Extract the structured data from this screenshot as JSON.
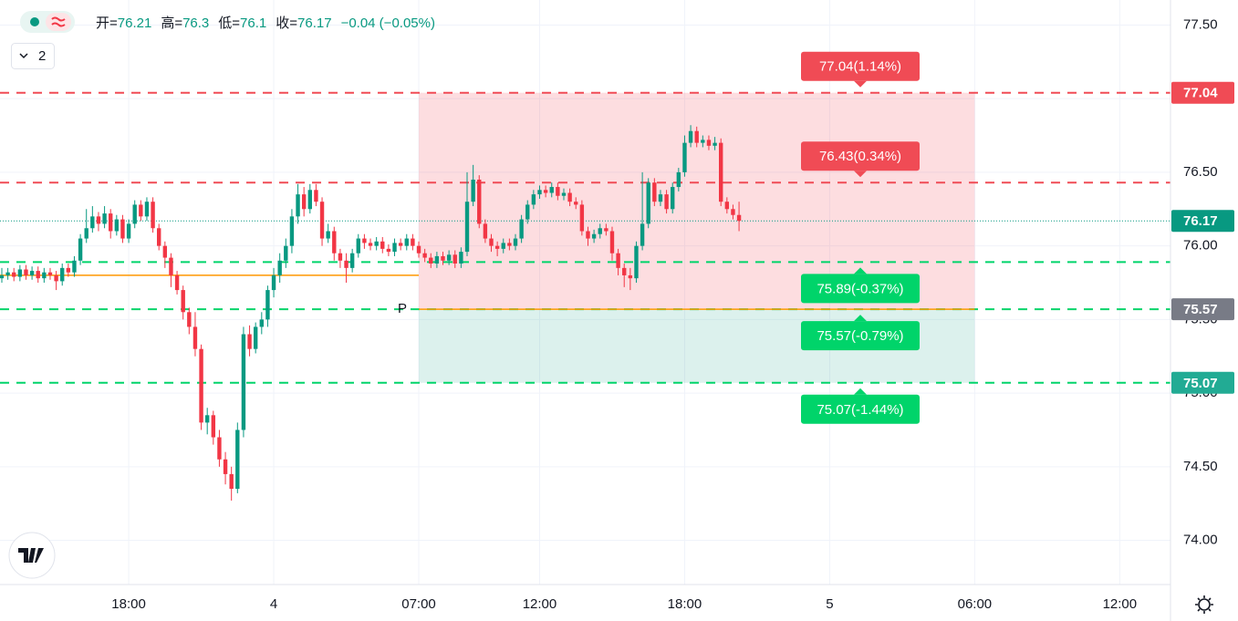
{
  "header": {
    "fields": [
      {
        "label": "开=",
        "value": 76.21
      },
      {
        "label": "高=",
        "value": 76.3
      },
      {
        "label": "低=",
        "value": 76.1
      },
      {
        "label": "收=",
        "value": 76.17
      }
    ],
    "change": "−0.04 (−0.05%)",
    "interval_count": "2"
  },
  "chart_data": {
    "type": "candlestick",
    "up_color": "#089981",
    "down_color": "#f23645",
    "xlim": [
      -21.3,
      172.4
    ],
    "xticks": [
      {
        "value": 0,
        "label": "18:00"
      },
      {
        "value": 24,
        "label": "4"
      },
      {
        "value": 48,
        "label": "07:00"
      },
      {
        "value": 68,
        "label": "12:00"
      },
      {
        "value": 92,
        "label": "18:00"
      },
      {
        "value": 116,
        "label": "5"
      },
      {
        "value": 140,
        "label": "06:00"
      },
      {
        "value": 164,
        "label": "12:00"
      }
    ],
    "ylim": [
      73.7,
      77.67
    ],
    "yticks": [
      {
        "value": 74,
        "label": "74.00"
      },
      {
        "value": 74.5,
        "label": "74.50"
      },
      {
        "value": 75,
        "label": "75.00"
      },
      {
        "value": 75.5,
        "label": "75.50"
      },
      {
        "value": 76,
        "label": "76.00"
      },
      {
        "value": 76.5,
        "label": "76.50"
      },
      {
        "value": 77,
        "label": "77.00"
      },
      {
        "value": 77.5,
        "label": "77.50"
      }
    ],
    "grid": true,
    "x": [
      -21,
      -20,
      -19,
      -18,
      -17,
      -16,
      -15,
      -14,
      -13,
      -12,
      -11,
      -10,
      -9,
      -8,
      -7,
      -6,
      -5,
      -4,
      -3,
      -2,
      -1,
      0,
      1,
      2,
      3,
      4,
      5,
      6,
      7,
      8,
      9,
      10,
      11,
      12,
      13,
      14,
      15,
      16,
      17,
      18,
      19,
      20,
      21,
      22,
      23,
      24,
      25,
      26,
      27,
      28,
      29,
      30,
      31,
      32,
      33,
      34,
      35,
      36,
      37,
      38,
      39,
      40,
      41,
      42,
      43,
      44,
      45,
      46,
      47,
      48,
      49,
      50,
      51,
      52,
      53,
      54,
      55,
      56,
      57,
      58,
      59,
      60,
      61,
      62,
      63,
      64,
      65,
      66,
      67,
      68,
      69,
      70,
      71,
      72,
      73,
      74,
      75,
      76,
      77,
      78,
      79,
      80,
      81,
      82,
      83,
      84,
      85,
      86,
      87,
      88,
      89,
      90,
      91,
      92,
      93,
      94,
      95,
      96,
      97,
      98,
      99,
      100,
      101
    ],
    "candles": [
      [
        75.78,
        75.85,
        75.75,
        75.8
      ],
      [
        75.8,
        75.85,
        75.77,
        75.82
      ],
      [
        75.82,
        75.85,
        75.76,
        75.79
      ],
      [
        75.79,
        75.87,
        75.76,
        75.84
      ],
      [
        75.84,
        75.87,
        75.77,
        75.8
      ],
      [
        75.8,
        75.86,
        75.77,
        75.83
      ],
      [
        75.83,
        75.86,
        75.75,
        75.78
      ],
      [
        75.78,
        75.85,
        75.75,
        75.82
      ],
      [
        75.82,
        75.85,
        75.77,
        75.8
      ],
      [
        75.8,
        75.83,
        75.7,
        75.76
      ],
      [
        75.76,
        75.88,
        75.73,
        75.85
      ],
      [
        75.85,
        75.88,
        75.79,
        75.82
      ],
      [
        75.82,
        75.93,
        75.79,
        75.9
      ],
      [
        75.9,
        76.08,
        75.87,
        76.05
      ],
      [
        76.05,
        76.25,
        76.02,
        76.12
      ],
      [
        76.12,
        76.27,
        76.09,
        76.2
      ],
      [
        76.2,
        76.23,
        76.1,
        76.15
      ],
      [
        76.15,
        76.27,
        76.12,
        76.22
      ],
      [
        76.22,
        76.25,
        76.05,
        76.1
      ],
      [
        76.1,
        76.21,
        76.07,
        76.18
      ],
      [
        76.18,
        76.21,
        76.02,
        76.05
      ],
      [
        76.05,
        76.18,
        76.02,
        76.15
      ],
      [
        76.15,
        76.31,
        76.12,
        76.28
      ],
      [
        76.28,
        76.31,
        76.17,
        76.2
      ],
      [
        76.2,
        76.33,
        76.17,
        76.3
      ],
      [
        76.3,
        76.33,
        76.09,
        76.12
      ],
      [
        76.12,
        76.15,
        75.97,
        76.0
      ],
      [
        76.0,
        76.03,
        75.85,
        75.92
      ],
      [
        75.92,
        75.95,
        75.72,
        75.8
      ],
      [
        75.8,
        75.83,
        75.67,
        75.7
      ],
      [
        75.7,
        75.73,
        75.5,
        75.55
      ],
      [
        75.55,
        75.58,
        75.4,
        75.45
      ],
      [
        75.45,
        75.55,
        75.25,
        75.3
      ],
      [
        75.3,
        75.33,
        74.75,
        74.8
      ],
      [
        74.8,
        74.9,
        74.72,
        74.85
      ],
      [
        74.85,
        74.88,
        74.65,
        74.7
      ],
      [
        74.7,
        74.75,
        74.5,
        74.55
      ],
      [
        74.55,
        74.6,
        74.38,
        74.45
      ],
      [
        74.45,
        74.5,
        74.27,
        74.35
      ],
      [
        74.35,
        74.8,
        74.32,
        74.75
      ],
      [
        74.75,
        75.45,
        74.7,
        75.4
      ],
      [
        75.4,
        75.46,
        75.25,
        75.3
      ],
      [
        75.3,
        75.48,
        75.27,
        75.45
      ],
      [
        75.45,
        75.55,
        75.4,
        75.5
      ],
      [
        75.5,
        75.73,
        75.45,
        75.7
      ],
      [
        75.7,
        75.85,
        75.65,
        75.8
      ],
      [
        75.8,
        75.95,
        75.75,
        75.9
      ],
      [
        75.9,
        76.05,
        75.85,
        76.0
      ],
      [
        76.0,
        76.25,
        75.95,
        76.2
      ],
      [
        76.2,
        76.42,
        76.15,
        76.35
      ],
      [
        76.35,
        76.4,
        76.2,
        76.25
      ],
      [
        76.25,
        76.42,
        76.22,
        76.38
      ],
      [
        76.38,
        76.42,
        76.27,
        76.3
      ],
      [
        76.3,
        76.33,
        76.0,
        76.05
      ],
      [
        76.05,
        76.15,
        76.02,
        76.1
      ],
      [
        76.1,
        76.13,
        75.9,
        75.95
      ],
      [
        75.95,
        75.98,
        75.85,
        75.9
      ],
      [
        75.9,
        75.95,
        75.75,
        75.85
      ],
      [
        75.85,
        75.98,
        75.82,
        75.95
      ],
      [
        75.95,
        76.08,
        75.92,
        76.05
      ],
      [
        76.05,
        76.08,
        75.98,
        76.02
      ],
      [
        76.02,
        76.05,
        75.97,
        76.0
      ],
      [
        76.0,
        76.06,
        75.97,
        76.03
      ],
      [
        76.03,
        76.06,
        75.95,
        75.98
      ],
      [
        75.98,
        76.01,
        75.93,
        75.96
      ],
      [
        75.96,
        76.05,
        75.93,
        76.02
      ],
      [
        76.02,
        76.05,
        75.97,
        76.0
      ],
      [
        76.0,
        76.08,
        75.97,
        76.05
      ],
      [
        76.05,
        76.08,
        75.97,
        76.0
      ],
      [
        76.0,
        76.03,
        75.92,
        75.95
      ],
      [
        75.95,
        75.98,
        75.89,
        75.92
      ],
      [
        75.92,
        75.95,
        75.85,
        75.88
      ],
      [
        75.88,
        75.96,
        75.85,
        75.93
      ],
      [
        75.93,
        75.96,
        75.87,
        75.9
      ],
      [
        75.9,
        75.97,
        75.87,
        75.94
      ],
      [
        75.94,
        75.97,
        75.85,
        75.88
      ],
      [
        75.88,
        75.99,
        75.85,
        75.96
      ],
      [
        75.96,
        76.5,
        75.93,
        76.3
      ],
      [
        76.3,
        76.55,
        76.27,
        76.45
      ],
      [
        76.45,
        76.48,
        76.12,
        76.15
      ],
      [
        76.15,
        76.18,
        76.02,
        76.05
      ],
      [
        76.05,
        76.08,
        75.96,
        76.0
      ],
      [
        76.0,
        76.03,
        75.93,
        75.98
      ],
      [
        75.98,
        76.05,
        75.95,
        76.02
      ],
      [
        76.02,
        76.05,
        75.97,
        76.0
      ],
      [
        76.0,
        76.08,
        75.97,
        76.05
      ],
      [
        76.05,
        76.21,
        76.02,
        76.18
      ],
      [
        76.18,
        76.31,
        76.15,
        76.28
      ],
      [
        76.28,
        76.38,
        76.25,
        76.35
      ],
      [
        76.35,
        76.41,
        76.32,
        76.38
      ],
      [
        76.38,
        76.41,
        76.33,
        76.36
      ],
      [
        76.36,
        76.43,
        76.33,
        76.4
      ],
      [
        76.4,
        76.43,
        76.31,
        76.34
      ],
      [
        76.34,
        76.39,
        76.31,
        76.36
      ],
      [
        76.36,
        76.39,
        76.27,
        76.3
      ],
      [
        76.3,
        76.33,
        76.25,
        76.28
      ],
      [
        76.28,
        76.31,
        76.07,
        76.1
      ],
      [
        76.1,
        76.13,
        76.0,
        76.05
      ],
      [
        76.05,
        76.11,
        76.02,
        76.08
      ],
      [
        76.08,
        76.15,
        76.05,
        76.12
      ],
      [
        76.12,
        76.15,
        76.07,
        76.1
      ],
      [
        76.1,
        76.13,
        75.9,
        75.95
      ],
      [
        75.95,
        75.98,
        75.8,
        75.85
      ],
      [
        75.85,
        75.88,
        75.72,
        75.8
      ],
      [
        75.8,
        75.85,
        75.7,
        75.78
      ],
      [
        75.78,
        76.03,
        75.75,
        76.0
      ],
      [
        76.0,
        76.5,
        75.97,
        76.15
      ],
      [
        76.15,
        76.46,
        76.12,
        76.43
      ],
      [
        76.43,
        76.46,
        76.27,
        76.3
      ],
      [
        76.3,
        76.38,
        76.27,
        76.35
      ],
      [
        76.35,
        76.38,
        76.22,
        76.25
      ],
      [
        76.25,
        76.43,
        76.22,
        76.4
      ],
      [
        76.4,
        76.53,
        76.37,
        76.5
      ],
      [
        76.5,
        76.75,
        76.47,
        76.7
      ],
      [
        76.7,
        76.82,
        76.67,
        76.78
      ],
      [
        76.78,
        76.81,
        76.67,
        76.7
      ],
      [
        76.7,
        76.75,
        76.67,
        76.72
      ],
      [
        76.72,
        76.75,
        76.65,
        76.68
      ],
      [
        76.68,
        76.74,
        76.65,
        76.7
      ],
      [
        76.7,
        76.73,
        76.27,
        76.3
      ],
      [
        76.3,
        76.33,
        76.22,
        76.25
      ],
      [
        76.25,
        76.28,
        76.18,
        76.21
      ],
      [
        76.21,
        76.3,
        76.1,
        76.17
      ]
    ],
    "last_price": {
      "value": 76.17,
      "color": "#089981"
    },
    "zone": {
      "x_from": 48,
      "x_to": 140,
      "top": 77.04,
      "entry": 75.57,
      "bottom": 75.07,
      "top_color": "rgba(242,54,69,0.17)",
      "bottom_color": "rgba(8,153,129,0.14)",
      "entry_label": "P",
      "line_color": "#ff9800"
    },
    "support_line": {
      "value": 75.8,
      "x_to": 48,
      "color": "#ff9800"
    },
    "levels": [
      {
        "value": 77.04,
        "label": "77.04(1.14%)",
        "color": "#f04b55",
        "axis_color": "#f04b55"
      },
      {
        "value": 76.43,
        "label": "76.43(0.34%)",
        "color": "#f04b55"
      },
      {
        "value": 75.89,
        "label": "75.89(-0.37%)",
        "color": "#00d46a"
      },
      {
        "value": 75.57,
        "label": "75.57(-0.79%)",
        "color": "#00d46a",
        "axis_color": "#787b86"
      },
      {
        "value": 75.07,
        "label": "75.07(-1.44%)",
        "color": "#00d46a",
        "axis_color": "#22ab94"
      }
    ]
  }
}
